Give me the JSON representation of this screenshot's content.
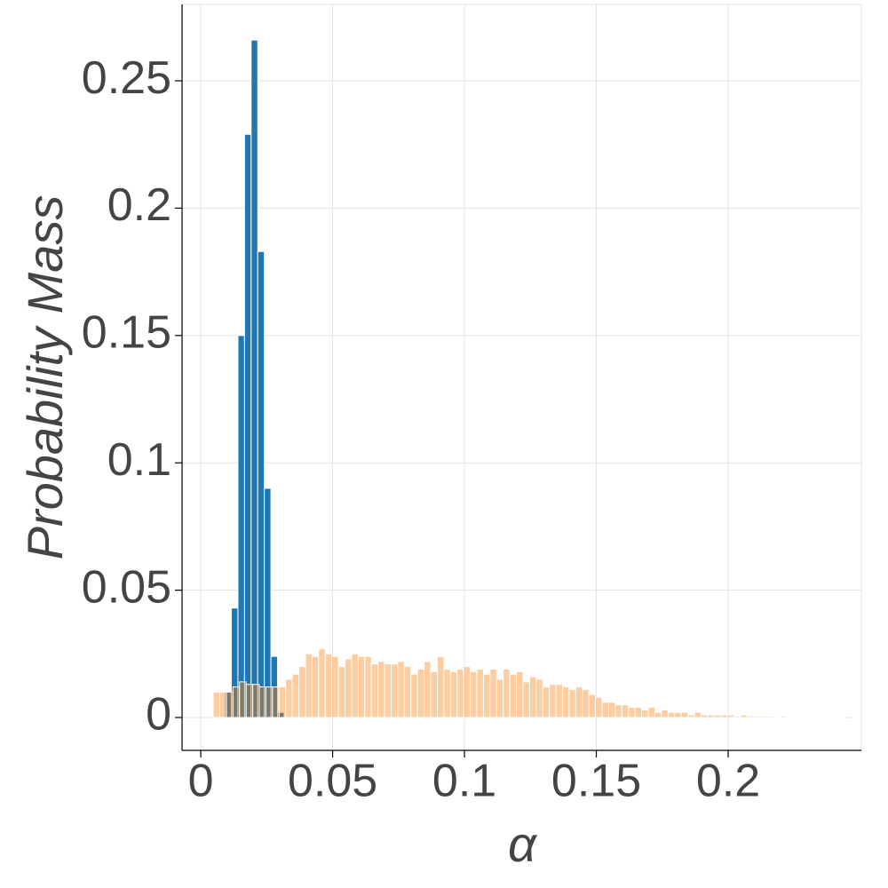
{
  "chart_data": {
    "type": "histogram",
    "xlabel": "α",
    "ylabel": "Probability Mass",
    "xlim": [
      -0.0071,
      0.2505
    ],
    "ylim": [
      -0.0129,
      0.28
    ],
    "xticks": [
      0,
      0.05,
      0.1,
      0.15,
      0.2
    ],
    "yticks": [
      0,
      0.05,
      0.1,
      0.15,
      0.2,
      0.25
    ],
    "grid": true,
    "series": [
      {
        "color": "#1f77b4",
        "alpha": 1,
        "bins": [
          0.0091,
          0.0116,
          0.0141,
          0.0166,
          0.0191,
          0.0216,
          0.0241,
          0.0266,
          0.0291,
          0.0316
        ],
        "values": [
          0.01,
          0.043,
          0.15,
          0.229,
          0.266,
          0.183,
          0.09,
          0.024,
          0.002
        ]
      },
      {
        "color": "#ff7f0e",
        "alpha": 0.4,
        "bins": [
          0.0047,
          0.0072,
          0.0097,
          0.0122,
          0.0147,
          0.0172,
          0.0197,
          0.0222,
          0.0247,
          0.0272,
          0.0297,
          0.0322,
          0.0347,
          0.0372,
          0.0397,
          0.0422,
          0.0447,
          0.0472,
          0.0497,
          0.0522,
          0.0547,
          0.0572,
          0.0597,
          0.0622,
          0.0647,
          0.0672,
          0.0697,
          0.0722,
          0.0747,
          0.0772,
          0.0797,
          0.0822,
          0.0847,
          0.0872,
          0.0897,
          0.0922,
          0.0947,
          0.0972,
          0.0997,
          0.1022,
          0.1047,
          0.1072,
          0.1097,
          0.1122,
          0.1147,
          0.1172,
          0.1197,
          0.1222,
          0.1247,
          0.1272,
          0.1297,
          0.1322,
          0.1347,
          0.1372,
          0.1397,
          0.1422,
          0.1447,
          0.1472,
          0.1497,
          0.1522,
          0.1547,
          0.1572,
          0.1597,
          0.1622,
          0.1647,
          0.1672,
          0.1697,
          0.1722,
          0.1747,
          0.1772,
          0.1797,
          0.1822,
          0.1847,
          0.1872,
          0.1897,
          0.1922,
          0.1947,
          0.1972,
          0.1997,
          0.2022,
          0.2047,
          0.2072,
          0.2097,
          0.2122,
          0.2147,
          0.2172,
          0.2197,
          0.2222,
          0.2247,
          0.2272,
          0.2297,
          0.2322,
          0.2347,
          0.2372,
          0.2397,
          0.2422,
          0.2447,
          0.2472,
          0.2497
        ],
        "values": [
          0.01,
          0.01,
          0.01,
          0.012,
          0.014,
          0.013,
          0.013,
          0.012,
          0.012,
          0.012,
          0.012,
          0.015,
          0.017,
          0.02,
          0.025,
          0.024,
          0.027,
          0.025,
          0.024,
          0.02,
          0.023,
          0.025,
          0.024,
          0.024,
          0.021,
          0.022,
          0.021,
          0.021,
          0.022,
          0.02,
          0.017,
          0.019,
          0.022,
          0.018,
          0.024,
          0.019,
          0.018,
          0.019,
          0.02,
          0.018,
          0.019,
          0.017,
          0.019,
          0.015,
          0.019,
          0.017,
          0.018,
          0.014,
          0.016,
          0.015,
          0.012,
          0.013,
          0.013,
          0.012,
          0.011,
          0.012,
          0.011,
          0.009,
          0.008,
          0.006,
          0.006,
          0.005,
          0.005,
          0.004,
          0.004,
          0.003,
          0.004,
          0.002,
          0.003,
          0.002,
          0.002,
          0.002,
          0.001,
          0.002,
          0.001,
          0.001,
          0.001,
          0.001,
          0.001,
          0.0005,
          0.001,
          0.0005,
          0.0005,
          0.0005,
          0.0005,
          0.0003,
          0.0005,
          0.0002,
          0.0002,
          0.0002,
          0.0001,
          0.0002,
          0.0001,
          0.0001,
          0.0001,
          0.0001,
          0,
          0.0001
        ]
      }
    ]
  }
}
